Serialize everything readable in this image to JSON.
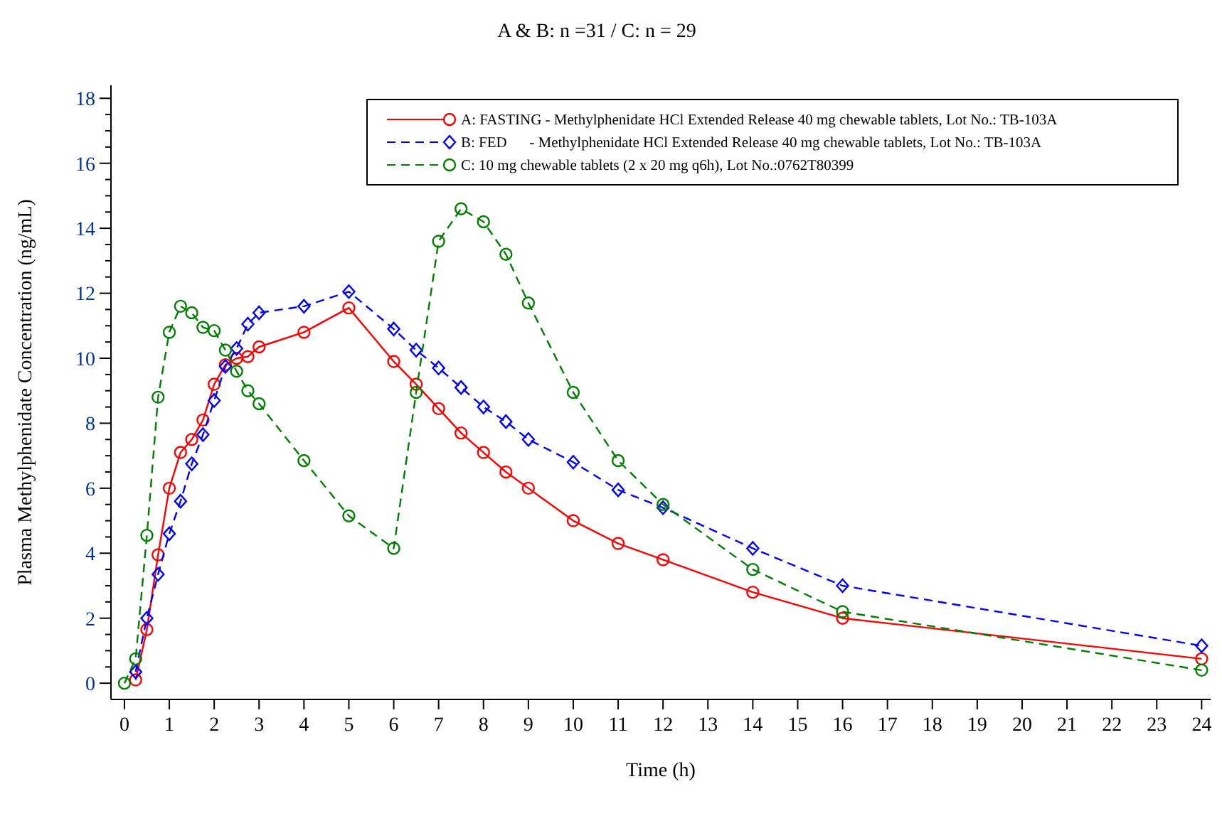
{
  "chart_data": {
    "type": "line",
    "title": "A & B: n =31 / C: n = 29",
    "xlabel": "Time (h)",
    "ylabel": "Plasma Methylphenidate Concentration (ng/mL)",
    "xlim": [
      -0.3,
      24.2
    ],
    "xticks": [
      0,
      1,
      2,
      3,
      4,
      5,
      6,
      7,
      8,
      9,
      10,
      11,
      12,
      13,
      14,
      15,
      16,
      17,
      18,
      19,
      20,
      21,
      22,
      23,
      24
    ],
    "ylim": [
      -0.5,
      18.4
    ],
    "yticks": [
      0,
      {
        "value": 0.5,
        "label": null
      },
      {
        "value": 1,
        "label": null
      },
      {
        "value": 1.5,
        "label": null
      },
      2,
      {
        "value": 2.5,
        "label": null
      },
      {
        "value": 3,
        "label": null
      },
      {
        "value": 3.5,
        "label": null
      },
      4,
      {
        "value": 4.5,
        "label": null
      },
      {
        "value": 5,
        "label": null
      },
      {
        "value": 5.5,
        "label": null
      },
      6,
      {
        "value": 6.5,
        "label": null
      },
      {
        "value": 7,
        "label": null
      },
      {
        "value": 7.5,
        "label": null
      },
      8,
      {
        "value": 8.5,
        "label": null
      },
      {
        "value": 9,
        "label": null
      },
      {
        "value": 9.5,
        "label": null
      },
      10,
      {
        "value": 10.5,
        "label": null
      },
      {
        "value": 11,
        "label": null
      },
      {
        "value": 11.5,
        "label": null
      },
      12,
      {
        "value": 12.5,
        "label": null
      },
      {
        "value": 13,
        "label": null
      },
      {
        "value": 13.5,
        "label": null
      },
      14,
      {
        "value": 14.5,
        "label": null
      },
      {
        "value": 15,
        "label": null
      },
      {
        "value": 15.5,
        "label": null
      },
      16,
      {
        "value": 16.5,
        "label": null
      },
      {
        "value": 17,
        "label": null
      },
      {
        "value": 17.5,
        "label": null
      },
      18
    ],
    "grid": false,
    "legend": "top right",
    "series": [
      {
        "name": "A: FASTING - Methylphenidate HCl Extended Release 40 mg chewable tablets, Lot No.: TB-103A",
        "color": "#ff0000",
        "marker": "circle",
        "line_style": "solid",
        "x": [
          0.25,
          0.5,
          0.75,
          1,
          1.25,
          1.5,
          1.75,
          2,
          2.25,
          2.5,
          2.75,
          3,
          4,
          5,
          6,
          6.5,
          7,
          7.5,
          8,
          8.5,
          9,
          10,
          11,
          12,
          14,
          16,
          24
        ],
        "values": [
          0.1,
          1.65,
          3.95,
          6.0,
          7.1,
          7.5,
          8.1,
          9.2,
          9.8,
          10.0,
          10.05,
          10.35,
          10.8,
          11.55,
          9.9,
          9.2,
          8.45,
          7.7,
          7.1,
          6.5,
          6.0,
          5.0,
          4.3,
          3.8,
          2.8,
          2.0,
          0.75
        ]
      },
      {
        "name": "B: FED      - Methylphenidate HCl Extended Release 40 mg chewable tablets, Lot No.: TB-103A",
        "color": "#0000ff",
        "marker": "diamond",
        "line_style": "dashed",
        "x": [
          0.25,
          0.5,
          0.75,
          1,
          1.25,
          1.5,
          1.75,
          2,
          2.25,
          2.5,
          2.75,
          3,
          4,
          5,
          6,
          6.5,
          7,
          7.5,
          8,
          8.5,
          9,
          10,
          11,
          12,
          14,
          16,
          24
        ],
        "values": [
          0.35,
          2.0,
          3.35,
          4.6,
          5.6,
          6.75,
          7.65,
          8.7,
          9.75,
          10.3,
          11.05,
          11.4,
          11.6,
          12.05,
          10.9,
          10.25,
          9.7,
          9.1,
          8.5,
          8.05,
          7.5,
          6.8,
          5.95,
          5.4,
          4.15,
          3.0,
          1.15
        ]
      },
      {
        "name": "C: 10 mg chewable tablets (2 x 20 mg q6h), Lot No.:0762T80399",
        "color": "#007f00",
        "marker": "circle",
        "line_style": "dashed",
        "x": [
          0,
          0.25,
          0.5,
          0.75,
          1,
          1.25,
          1.5,
          1.75,
          2,
          2.25,
          2.5,
          2.75,
          3,
          4,
          5,
          6,
          6.5,
          7,
          7.5,
          8,
          8.5,
          9,
          10,
          11,
          12,
          14,
          16,
          24
        ],
        "values": [
          0,
          0.75,
          4.55,
          8.8,
          10.8,
          11.6,
          11.4,
          10.95,
          10.85,
          10.25,
          9.6,
          9.0,
          8.6,
          6.85,
          5.15,
          4.15,
          8.95,
          13.6,
          14.6,
          14.2,
          13.2,
          11.7,
          8.95,
          6.85,
          5.5,
          3.5,
          2.2,
          0.4
        ]
      }
    ]
  }
}
